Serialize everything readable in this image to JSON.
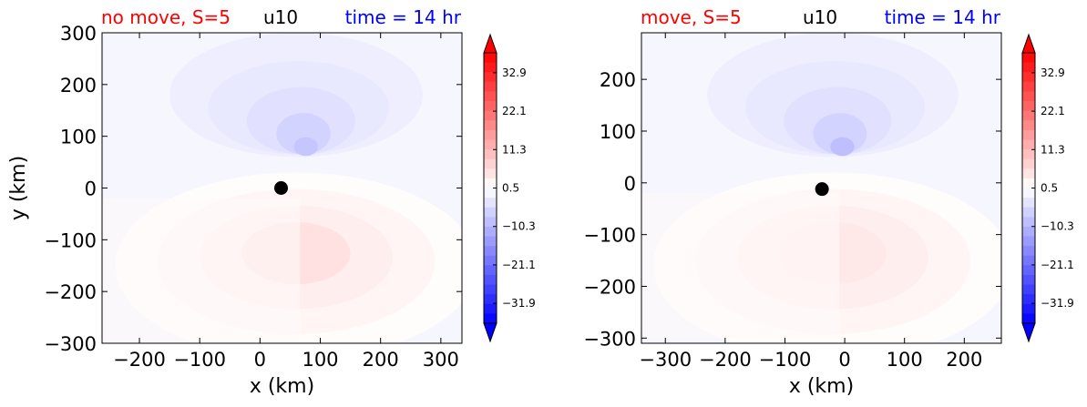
{
  "chart_data": [
    {
      "type": "heatmap",
      "title_left": "no move, S=5",
      "title_center": "u10",
      "title_right": "time = 14 hr",
      "title_left_color": "#ff0000",
      "title_center_color": "#000000",
      "title_right_color": "#0000ff",
      "xlabel": "x (km)",
      "ylabel": "y (km)",
      "xlim": [
        -262,
        335
      ],
      "ylim": [
        -300,
        300
      ],
      "xticks": [
        -200,
        -100,
        0,
        100,
        200,
        300
      ],
      "xtick_labels": [
        "−200",
        "−100",
        "0",
        "100",
        "200",
        "300"
      ],
      "yticks": [
        -300,
        -200,
        -100,
        0,
        100,
        200,
        300
      ],
      "ytick_labels": [
        "−300",
        "−200",
        "−100",
        "0",
        "100",
        "200",
        "300"
      ],
      "marker": {
        "x": 35,
        "y": 0,
        "color": "#000000"
      },
      "negative_lobe": {
        "center": [
          60,
          180
        ],
        "min_value": -8
      },
      "positive_lobe": {
        "center": [
          60,
          -140
        ],
        "max_value": 5
      },
      "colorbar": {
        "range": [
          -37.5,
          38.5
        ],
        "ticks": [
          32.9,
          22.1,
          11.3,
          0.5,
          -10.3,
          -21.1,
          -31.9
        ],
        "tick_labels": [
          "32.9",
          "22.1",
          "11.3",
          "0.5",
          "−10.3",
          "−21.1",
          "−31.9"
        ],
        "extend": "both",
        "colormap": "bwr"
      }
    },
    {
      "type": "heatmap",
      "title_left": "move, S=5",
      "title_center": "u10",
      "title_right": "time = 14 hr",
      "title_left_color": "#ff0000",
      "title_center_color": "#000000",
      "title_right_color": "#0000ff",
      "xlabel": "x (km)",
      "ylabel": "",
      "xlim": [
        -340,
        262
      ],
      "ylim": [
        -310,
        290
      ],
      "xticks": [
        -300,
        -200,
        -100,
        0,
        100,
        200
      ],
      "xtick_labels": [
        "−300",
        "−200",
        "−100",
        "0",
        "100",
        "200"
      ],
      "yticks": [
        -300,
        -200,
        -100,
        0,
        100,
        200
      ],
      "ytick_labels": [
        "−300",
        "−200",
        "−100",
        "0",
        "100",
        "200"
      ],
      "marker": {
        "x": -38,
        "y": -12,
        "color": "#000000"
      },
      "negative_lobe": {
        "center": [
          -20,
          170
        ],
        "min_value": -9
      },
      "positive_lobe": {
        "center": [
          -20,
          -150
        ],
        "max_value": 4
      },
      "colorbar": {
        "range": [
          -37.5,
          38.5
        ],
        "ticks": [
          32.9,
          22.1,
          11.3,
          0.5,
          -10.3,
          -21.1,
          -31.9
        ],
        "tick_labels": [
          "32.9",
          "22.1",
          "11.3",
          "0.5",
          "−10.3",
          "−21.1",
          "−31.9"
        ],
        "extend": "both",
        "colormap": "bwr"
      }
    }
  ]
}
